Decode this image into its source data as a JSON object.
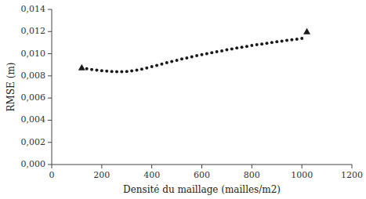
{
  "chart_data": {
    "type": "scatter",
    "xlabel": "Densité du maillage (mailles/m2)",
    "ylabel": "RMSE (m)",
    "xlim": [
      0,
      1200
    ],
    "ylim": [
      0.0,
      0.014
    ],
    "xticks": [
      0,
      200,
      400,
      600,
      800,
      1000,
      1200
    ],
    "yticks": [
      {
        "value": 0.0,
        "label": "0,000"
      },
      {
        "value": 0.002,
        "label": "0,002"
      },
      {
        "value": 0.004,
        "label": "0,004"
      },
      {
        "value": 0.006,
        "label": "0,006"
      },
      {
        "value": 0.008,
        "label": "0,008"
      },
      {
        "value": 0.01,
        "label": "0,010"
      },
      {
        "value": 0.012,
        "label": "0,012"
      },
      {
        "value": 0.014,
        "label": "0,014"
      }
    ],
    "grid": false,
    "series": [
      {
        "marker": "circle",
        "color": "#1a1a1a",
        "x": [
          140,
          160,
          180,
          200,
          220,
          240,
          260,
          280,
          300,
          320,
          340,
          360,
          380,
          400,
          420,
          440,
          460,
          480,
          500,
          520,
          540,
          560,
          580,
          600,
          620,
          640,
          660,
          680,
          700,
          720,
          740,
          760,
          780,
          800,
          820,
          840,
          860,
          880,
          900,
          920,
          940,
          960,
          980,
          1000
        ],
        "values": [
          0.00865,
          0.00858,
          0.00852,
          0.00847,
          0.00843,
          0.0084,
          0.00837,
          0.00837,
          0.0084,
          0.00845,
          0.00852,
          0.00861,
          0.00872,
          0.00883,
          0.00895,
          0.00907,
          0.00919,
          0.0093,
          0.00941,
          0.00952,
          0.00962,
          0.00972,
          0.00982,
          0.00991,
          0.01,
          0.01009,
          0.01018,
          0.01026,
          0.01035,
          0.01043,
          0.01051,
          0.01059,
          0.01066,
          0.01074,
          0.01081,
          0.01088,
          0.01095,
          0.01101,
          0.01108,
          0.01114,
          0.0112,
          0.01126,
          0.01132,
          0.01138
        ]
      },
      {
        "marker": "triangle",
        "color": "#1a1a1a",
        "x": [
          120,
          1020
        ],
        "values": [
          0.00875,
          0.012
        ]
      }
    ]
  }
}
